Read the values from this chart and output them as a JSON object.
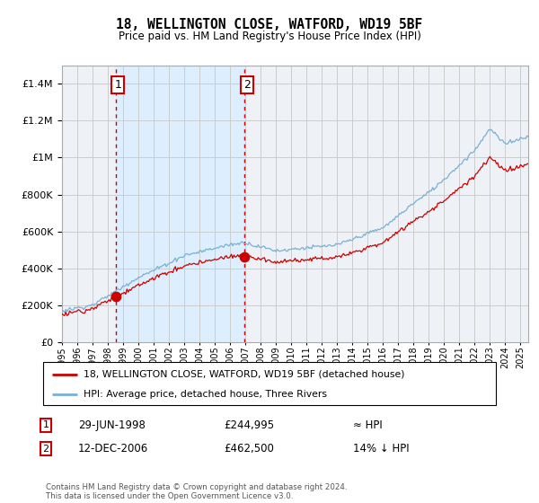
{
  "title": "18, WELLINGTON CLOSE, WATFORD, WD19 5BF",
  "subtitle": "Price paid vs. HM Land Registry's House Price Index (HPI)",
  "legend_line1": "18, WELLINGTON CLOSE, WATFORD, WD19 5BF (detached house)",
  "legend_line2": "HPI: Average price, detached house, Three Rivers",
  "annotation1_date": "29-JUN-1998",
  "annotation1_price": "£244,995",
  "annotation1_hpi": "≈ HPI",
  "annotation2_date": "12-DEC-2006",
  "annotation2_price": "£462,500",
  "annotation2_hpi": "14% ↓ HPI",
  "footer": "Contains HM Land Registry data © Crown copyright and database right 2024.\nThis data is licensed under the Open Government Licence v3.0.",
  "sale_color": "#cc0000",
  "hpi_color": "#7ab0d4",
  "vline_color": "#cc0000",
  "shade_color": "#ddeeff",
  "grid_color": "#cccccc",
  "bg_color": "#eef2f7",
  "ylim": [
    0,
    1500000
  ],
  "yticks": [
    0,
    200000,
    400000,
    600000,
    800000,
    1000000,
    1200000,
    1400000
  ],
  "xlim_start": 1995.0,
  "xlim_end": 2025.5,
  "sale1_x": 1998.5,
  "sale1_y": 244995,
  "sale2_x": 2006.95,
  "sale2_y": 462500
}
